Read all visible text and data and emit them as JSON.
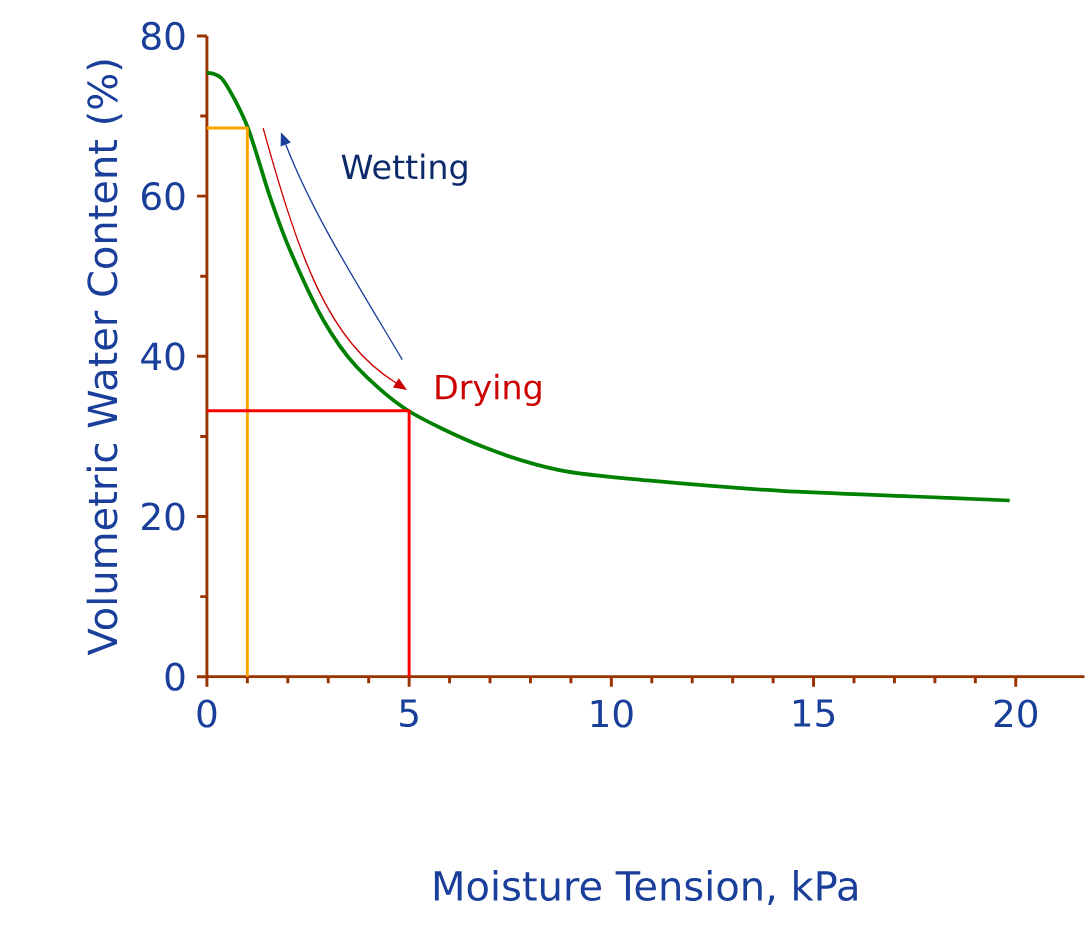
{
  "chart_data": {
    "type": "line",
    "xlabel": "Moisture Tension, kPa",
    "ylabel": "Volumetric Water Content (%)",
    "xlim": [
      0,
      21.7
    ],
    "ylim": [
      0,
      80
    ],
    "xticks": [
      0,
      5,
      10,
      15,
      20
    ],
    "yticks": [
      0,
      20,
      40,
      60,
      80
    ],
    "annotations": [
      "Wetting",
      "Drying"
    ],
    "series": [
      {
        "color": "#008000",
        "x": [
          0,
          0.4,
          1.0,
          1.56,
          2.05,
          2.87,
          3.7,
          4.95,
          6.83,
          8.71,
          10.9,
          14.2,
          17.5,
          19.85
        ],
        "values": [
          75.4,
          74.5,
          68.7,
          59.9,
          53.3,
          44.6,
          38.7,
          33.3,
          28.7,
          25.8,
          24.5,
          23.2,
          22.5,
          22.0
        ]
      },
      {
        "color": "#ffa500",
        "x": [
          0,
          1,
          1
        ],
        "values": [
          68.5,
          68.5,
          0
        ]
      },
      {
        "color": "#ff0000",
        "x": [
          0,
          5,
          5
        ],
        "values": [
          33.2,
          33.2,
          0
        ]
      }
    ]
  }
}
